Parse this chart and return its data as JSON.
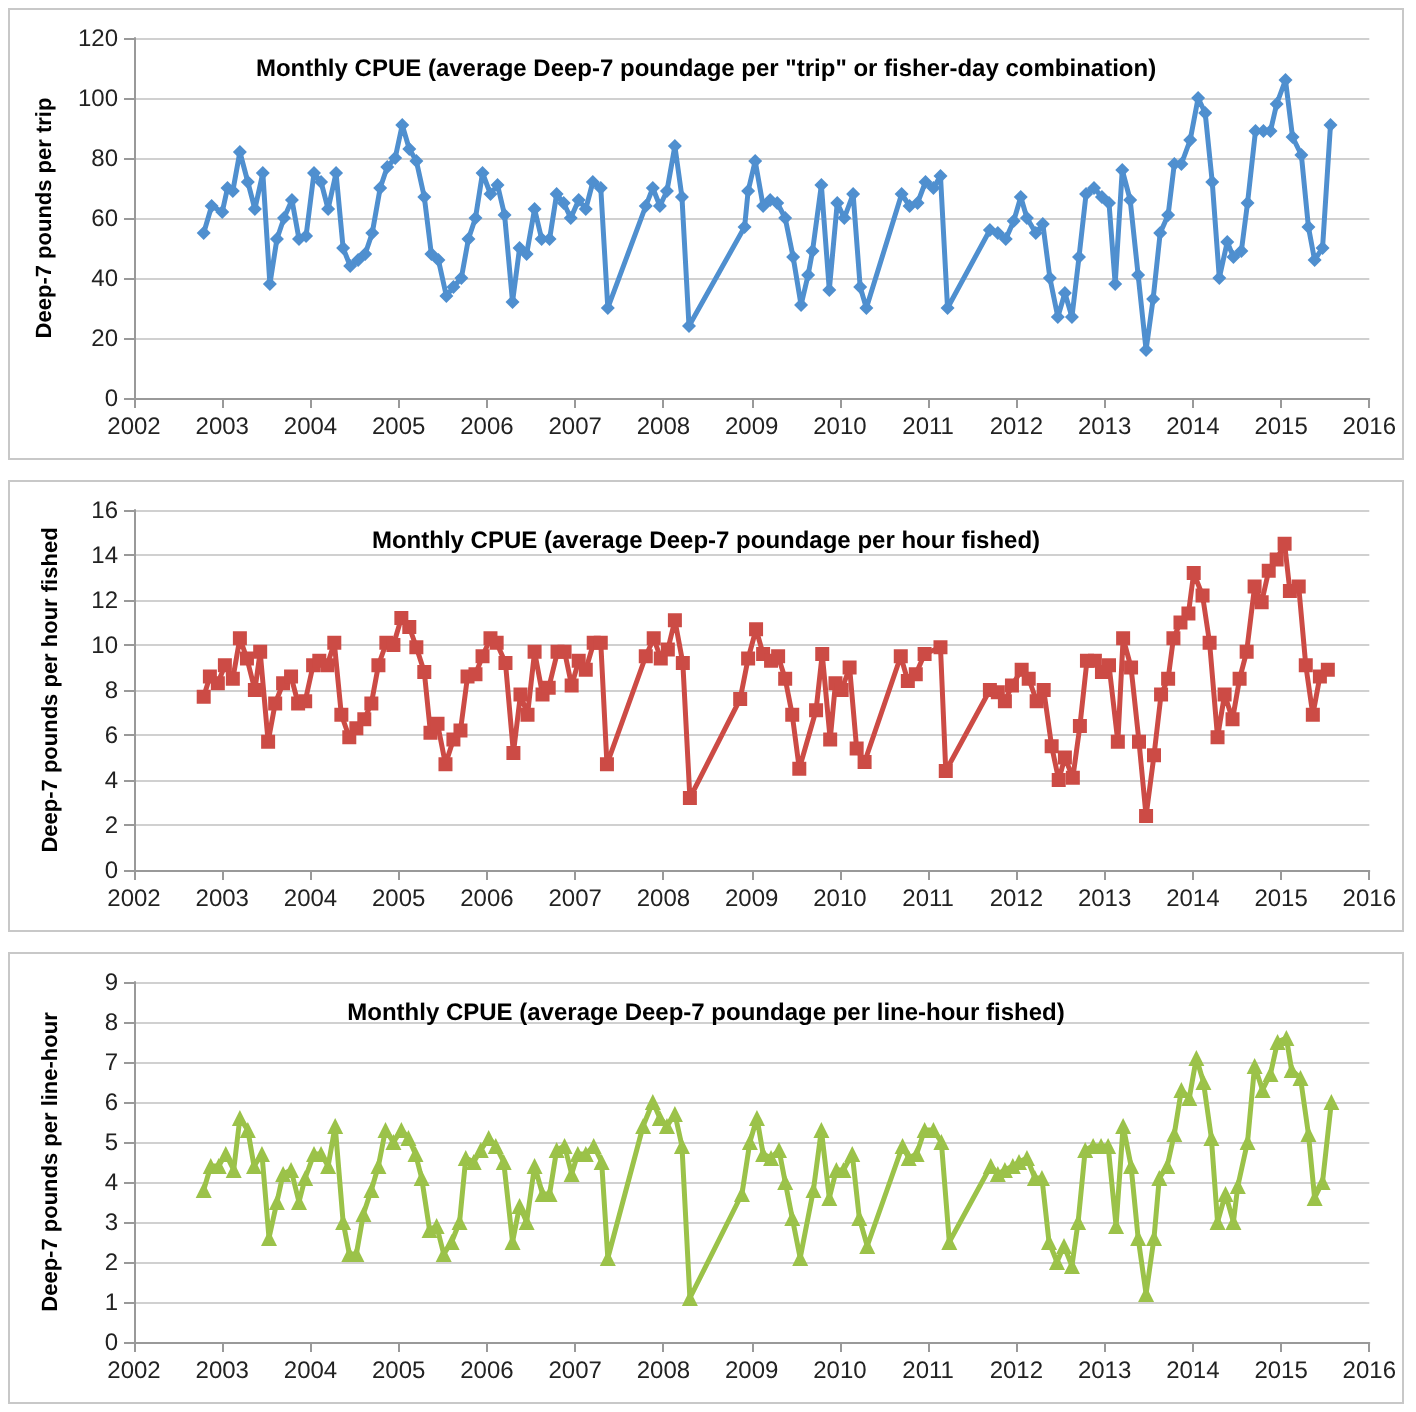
{
  "chart_data": [
    {
      "type": "line",
      "title": "Monthly CPUE (average Deep-7 poundage per \"trip\" or fisher-day combination)",
      "ylabel": "Deep-7 pounds per trip",
      "color": "#4f8fcf",
      "marker": "diamond",
      "grid": "y",
      "xlim": [
        2002,
        2016
      ],
      "xticks": [
        2002,
        2003,
        2004,
        2005,
        2006,
        2007,
        2008,
        2009,
        2010,
        2011,
        2012,
        2013,
        2014,
        2015,
        2016
      ],
      "ylim": [
        0,
        120
      ],
      "yticks": [
        0,
        20,
        40,
        60,
        80,
        100,
        120
      ],
      "x": [
        2002.79,
        2002.88,
        2003.0,
        2003.06,
        2003.12,
        2003.2,
        2003.29,
        2003.37,
        2003.46,
        2003.54,
        2003.62,
        2003.7,
        2003.79,
        2003.87,
        2003.95,
        2004.04,
        2004.12,
        2004.2,
        2004.29,
        2004.37,
        2004.45,
        2004.54,
        2004.62,
        2004.7,
        2004.79,
        2004.87,
        2004.96,
        2005.04,
        2005.12,
        2005.2,
        2005.29,
        2005.37,
        2005.45,
        2005.54,
        2005.62,
        2005.71,
        2005.79,
        2005.87,
        2005.95,
        2006.04,
        2006.12,
        2006.2,
        2006.29,
        2006.37,
        2006.45,
        2006.54,
        2006.62,
        2006.71,
        2006.79,
        2006.87,
        2006.95,
        2007.04,
        2007.12,
        2007.2,
        2007.29,
        2007.37,
        2007.8,
        2007.88,
        2007.96,
        2008.04,
        2008.13,
        2008.21,
        2008.29,
        2008.92,
        2008.96,
        2009.04,
        2009.13,
        2009.21,
        2009.29,
        2009.38,
        2009.47,
        2009.56,
        2009.64,
        2009.69,
        2009.79,
        2009.88,
        2009.97,
        2010.05,
        2010.15,
        2010.23,
        2010.3,
        2010.7,
        2010.79,
        2010.88,
        2010.97,
        2011.06,
        2011.14,
        2011.22,
        2011.7,
        2011.79,
        2011.88,
        2011.97,
        2012.05,
        2012.12,
        2012.22,
        2012.3,
        2012.38,
        2012.47,
        2012.55,
        2012.63,
        2012.71,
        2012.79,
        2012.88,
        2012.97,
        2013.05,
        2013.12,
        2013.2,
        2013.29,
        2013.38,
        2013.47,
        2013.55,
        2013.63,
        2013.72,
        2013.79,
        2013.87,
        2013.97,
        2014.06,
        2014.14,
        2014.22,
        2014.3,
        2014.39,
        2014.46,
        2014.55,
        2014.62,
        2014.71,
        2014.8,
        2014.88,
        2014.95,
        2015.05,
        2015.13,
        2015.23,
        2015.31,
        2015.38,
        2015.47,
        2015.56
      ],
      "values": [
        55,
        64,
        62,
        70,
        69,
        82,
        72,
        63,
        75,
        38,
        53,
        60,
        66,
        53,
        54,
        75,
        72,
        63,
        75,
        50,
        44,
        46,
        48,
        55,
        70,
        77,
        80,
        91,
        83,
        79,
        67,
        48,
        46,
        34,
        37,
        40,
        53,
        60,
        75,
        68,
        71,
        61,
        32,
        50,
        48,
        63,
        53,
        53,
        68,
        65,
        60,
        66,
        63,
        72,
        70,
        30,
        64,
        70,
        64,
        69,
        84,
        67,
        24,
        57,
        69,
        79,
        64,
        66,
        65,
        60,
        47,
        31,
        41,
        49,
        71,
        36,
        65,
        60,
        68,
        37,
        30,
        68,
        64,
        65,
        72,
        70,
        74,
        30,
        56,
        55,
        53,
        59,
        67,
        60,
        55,
        58,
        40,
        27,
        35,
        27,
        47,
        68,
        70,
        67,
        65,
        38,
        76,
        66,
        41,
        16,
        33,
        55,
        61,
        78,
        78,
        86,
        100,
        95,
        72,
        40,
        52,
        47,
        49,
        65,
        89,
        89,
        89,
        98,
        106,
        87,
        81,
        57,
        46,
        50,
        91
      ]
    },
    {
      "type": "line",
      "title": "Monthly CPUE (average Deep-7 poundage per hour fished)",
      "ylabel": "Deep-7 pounds per hour fished",
      "color": "#cc4b45",
      "marker": "square",
      "grid": "y",
      "xlim": [
        2002,
        2016
      ],
      "xticks": [
        2002,
        2003,
        2004,
        2005,
        2006,
        2007,
        2008,
        2009,
        2010,
        2011,
        2012,
        2013,
        2014,
        2015,
        2016
      ],
      "ylim": [
        0,
        16
      ],
      "yticks": [
        0,
        2,
        4,
        6,
        8,
        10,
        12,
        14,
        16
      ],
      "x": [
        2002.79,
        2002.86,
        2002.95,
        2003.03,
        2003.12,
        2003.2,
        2003.28,
        2003.37,
        2003.43,
        2003.52,
        2003.6,
        2003.69,
        2003.78,
        2003.86,
        2003.94,
        2004.03,
        2004.1,
        2004.19,
        2004.27,
        2004.35,
        2004.44,
        2004.52,
        2004.61,
        2004.69,
        2004.77,
        2004.86,
        2004.94,
        2005.03,
        2005.12,
        2005.2,
        2005.29,
        2005.36,
        2005.44,
        2005.53,
        2005.62,
        2005.7,
        2005.78,
        2005.87,
        2005.95,
        2006.04,
        2006.11,
        2006.21,
        2006.3,
        2006.38,
        2006.46,
        2006.54,
        2006.63,
        2006.7,
        2006.8,
        2006.88,
        2006.96,
        2007.04,
        2007.12,
        2007.21,
        2007.29,
        2007.36,
        2007.8,
        2007.89,
        2007.97,
        2008.05,
        2008.13,
        2008.22,
        2008.3,
        2008.87,
        2008.96,
        2009.05,
        2009.13,
        2009.22,
        2009.3,
        2009.38,
        2009.46,
        2009.54,
        2009.73,
        2009.8,
        2009.89,
        2009.95,
        2010.02,
        2010.11,
        2010.19,
        2010.28,
        2010.69,
        2010.77,
        2010.86,
        2010.96,
        2011.14,
        2011.2,
        2011.7,
        2011.79,
        2011.87,
        2011.95,
        2012.06,
        2012.14,
        2012.23,
        2012.31,
        2012.4,
        2012.48,
        2012.55,
        2012.64,
        2012.72,
        2012.8,
        2012.89,
        2012.97,
        2013.05,
        2013.15,
        2013.21,
        2013.3,
        2013.39,
        2013.47,
        2013.56,
        2013.64,
        2013.72,
        2013.78,
        2013.86,
        2013.95,
        2014.01,
        2014.11,
        2014.19,
        2014.28,
        2014.36,
        2014.45,
        2014.53,
        2014.61,
        2014.7,
        2014.78,
        2014.86,
        2014.95,
        2015.04,
        2015.1,
        2015.2,
        2015.28,
        2015.36,
        2015.44,
        2015.53
      ],
      "values": [
        7.7,
        8.6,
        8.3,
        9.1,
        8.5,
        10.3,
        9.4,
        8.0,
        9.7,
        5.7,
        7.4,
        8.3,
        8.6,
        7.4,
        7.5,
        9.1,
        9.3,
        9.1,
        10.1,
        6.9,
        5.9,
        6.3,
        6.7,
        7.4,
        9.1,
        10.1,
        10.0,
        11.2,
        10.8,
        9.9,
        8.8,
        6.1,
        6.5,
        4.7,
        5.8,
        6.2,
        8.6,
        8.7,
        9.5,
        10.3,
        10.1,
        9.2,
        5.2,
        7.8,
        6.9,
        9.7,
        7.8,
        8.1,
        9.7,
        9.7,
        8.2,
        9.3,
        8.9,
        10.1,
        10.1,
        4.7,
        9.5,
        10.3,
        9.4,
        9.8,
        11.1,
        9.2,
        3.2,
        7.6,
        9.4,
        10.7,
        9.6,
        9.3,
        9.5,
        8.5,
        6.9,
        4.5,
        7.1,
        9.6,
        5.8,
        8.3,
        8.0,
        9.0,
        5.4,
        4.8,
        9.5,
        8.4,
        8.7,
        9.6,
        9.9,
        4.4,
        8.0,
        7.9,
        7.5,
        8.2,
        8.9,
        8.5,
        7.5,
        8.0,
        5.5,
        4.0,
        5.0,
        4.1,
        6.4,
        9.3,
        9.3,
        8.8,
        9.1,
        5.7,
        10.3,
        9.0,
        5.7,
        2.4,
        5.1,
        7.8,
        8.5,
        10.3,
        11.0,
        11.4,
        13.2,
        12.2,
        10.1,
        5.9,
        7.8,
        6.7,
        8.5,
        9.7,
        12.6,
        11.9,
        13.3,
        13.8,
        14.5,
        12.4,
        12.6,
        9.1,
        6.9,
        8.6,
        8.9
      ]
    },
    {
      "type": "line",
      "title": "Monthly CPUE (average Deep-7 poundage per line-hour fished)",
      "ylabel": "Deep-7 pounds per line-hour",
      "color": "#9bc249",
      "marker": "triangle",
      "grid": "y",
      "xlim": [
        2002,
        2016
      ],
      "xticks": [
        2002,
        2003,
        2004,
        2005,
        2006,
        2007,
        2008,
        2009,
        2010,
        2011,
        2012,
        2013,
        2014,
        2015,
        2016
      ],
      "ylim": [
        0,
        9
      ],
      "yticks": [
        0,
        1,
        2,
        3,
        4,
        5,
        6,
        7,
        8,
        9
      ],
      "x": [
        2002.79,
        2002.87,
        2002.96,
        2003.04,
        2003.13,
        2003.2,
        2003.29,
        2003.36,
        2003.45,
        2003.53,
        2003.62,
        2003.69,
        2003.78,
        2003.87,
        2003.94,
        2004.04,
        2004.12,
        2004.2,
        2004.28,
        2004.37,
        2004.44,
        2004.52,
        2004.6,
        2004.69,
        2004.77,
        2004.85,
        2004.94,
        2005.03,
        2005.11,
        2005.19,
        2005.26,
        2005.35,
        2005.43,
        2005.51,
        2005.6,
        2005.69,
        2005.76,
        2005.85,
        2005.93,
        2006.02,
        2006.1,
        2006.19,
        2006.29,
        2006.37,
        2006.45,
        2006.54,
        2006.63,
        2006.71,
        2006.79,
        2006.88,
        2006.96,
        2007.03,
        2007.12,
        2007.21,
        2007.3,
        2007.37,
        2007.77,
        2007.88,
        2007.96,
        2008.04,
        2008.13,
        2008.21,
        2008.3,
        2008.89,
        2008.98,
        2009.06,
        2009.13,
        2009.22,
        2009.31,
        2009.38,
        2009.46,
        2009.55,
        2009.7,
        2009.79,
        2009.88,
        2009.96,
        2010.04,
        2010.14,
        2010.22,
        2010.31,
        2010.71,
        2010.78,
        2010.87,
        2010.96,
        2011.06,
        2011.15,
        2011.24,
        2011.71,
        2011.79,
        2011.87,
        2011.96,
        2012.03,
        2012.12,
        2012.21,
        2012.29,
        2012.37,
        2012.46,
        2012.54,
        2012.63,
        2012.7,
        2012.78,
        2012.87,
        2012.96,
        2013.04,
        2013.13,
        2013.21,
        2013.3,
        2013.38,
        2013.47,
        2013.56,
        2013.62,
        2013.71,
        2013.79,
        2013.87,
        2013.96,
        2014.04,
        2014.12,
        2014.21,
        2014.28,
        2014.37,
        2014.46,
        2014.51,
        2014.62,
        2014.7,
        2014.79,
        2014.88,
        2014.96,
        2015.06,
        2015.12,
        2015.22,
        2015.31,
        2015.38,
        2015.47,
        2015.57
      ],
      "values": [
        3.8,
        4.4,
        4.4,
        4.7,
        4.3,
        5.6,
        5.3,
        4.4,
        4.7,
        2.6,
        3.5,
        4.2,
        4.3,
        3.5,
        4.1,
        4.7,
        4.7,
        4.4,
        5.4,
        3.0,
        2.2,
        2.2,
        3.2,
        3.8,
        4.4,
        5.3,
        5.0,
        5.3,
        5.1,
        4.7,
        4.1,
        2.8,
        2.9,
        2.2,
        2.5,
        3.0,
        4.6,
        4.5,
        4.8,
        5.1,
        4.9,
        4.5,
        2.5,
        3.4,
        3.0,
        4.4,
        3.7,
        3.7,
        4.8,
        4.9,
        4.2,
        4.7,
        4.7,
        4.9,
        4.5,
        2.1,
        5.4,
        6.0,
        5.6,
        5.4,
        5.7,
        4.9,
        1.1,
        3.7,
        5.0,
        5.6,
        4.7,
        4.6,
        4.8,
        4.0,
        3.1,
        2.1,
        3.8,
        5.3,
        3.6,
        4.3,
        4.3,
        4.7,
        3.1,
        2.4,
        4.9,
        4.6,
        4.7,
        5.3,
        5.3,
        5.0,
        2.5,
        4.4,
        4.2,
        4.3,
        4.4,
        4.5,
        4.6,
        4.1,
        4.1,
        2.5,
        2.0,
        2.4,
        1.9,
        3.0,
        4.8,
        4.9,
        4.9,
        4.9,
        2.9,
        5.4,
        4.4,
        2.6,
        1.2,
        2.6,
        4.1,
        4.4,
        5.2,
        6.3,
        6.1,
        7.1,
        6.5,
        5.1,
        3.0,
        3.7,
        3.0,
        3.9,
        5.0,
        6.9,
        6.3,
        6.7,
        7.5,
        7.6,
        6.8,
        6.6,
        5.2,
        3.6,
        4.0,
        6.0
      ]
    }
  ]
}
